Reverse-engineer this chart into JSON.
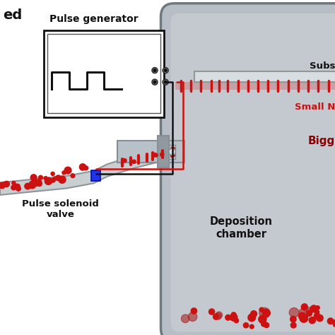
{
  "bg_color": "#ffffff",
  "chamber_color": "#b8bec5",
  "chamber_edge": "#707880",
  "chamber_light": "#d0d5da",
  "substrate_color": "#d8dde2",
  "substrate_edge": "#909898",
  "tube_color": "#c5cacd",
  "tube_edge": "#888e94",
  "nozzle_color": "#a8aeb5",
  "collar_color": "#9098a0",
  "blue_valve_color": "#2233ee",
  "blue_valve_edge": "#001088",
  "red_particle_color": "#cc1111",
  "dark_red_color": "#8b0000",
  "wire_black": "#111111",
  "wire_red": "#cc1111",
  "pulse_box_color": "#ffffff",
  "pulse_box_edge": "#111111",
  "inner_box_edge": "#555555",
  "text_color": "#111111",
  "red_label_color": "#cc1111",
  "dark_red_label": "#8b0000",
  "title_label": "ed",
  "pulse_gen_label": "Pulse generator",
  "valve_label": "Pulse solenoid\nvalve",
  "dep_chamber_label": "Deposition\nchamber",
  "small_n_label": "Small N",
  "bigg_label": "Bigg",
  "subs_label": "Subs"
}
